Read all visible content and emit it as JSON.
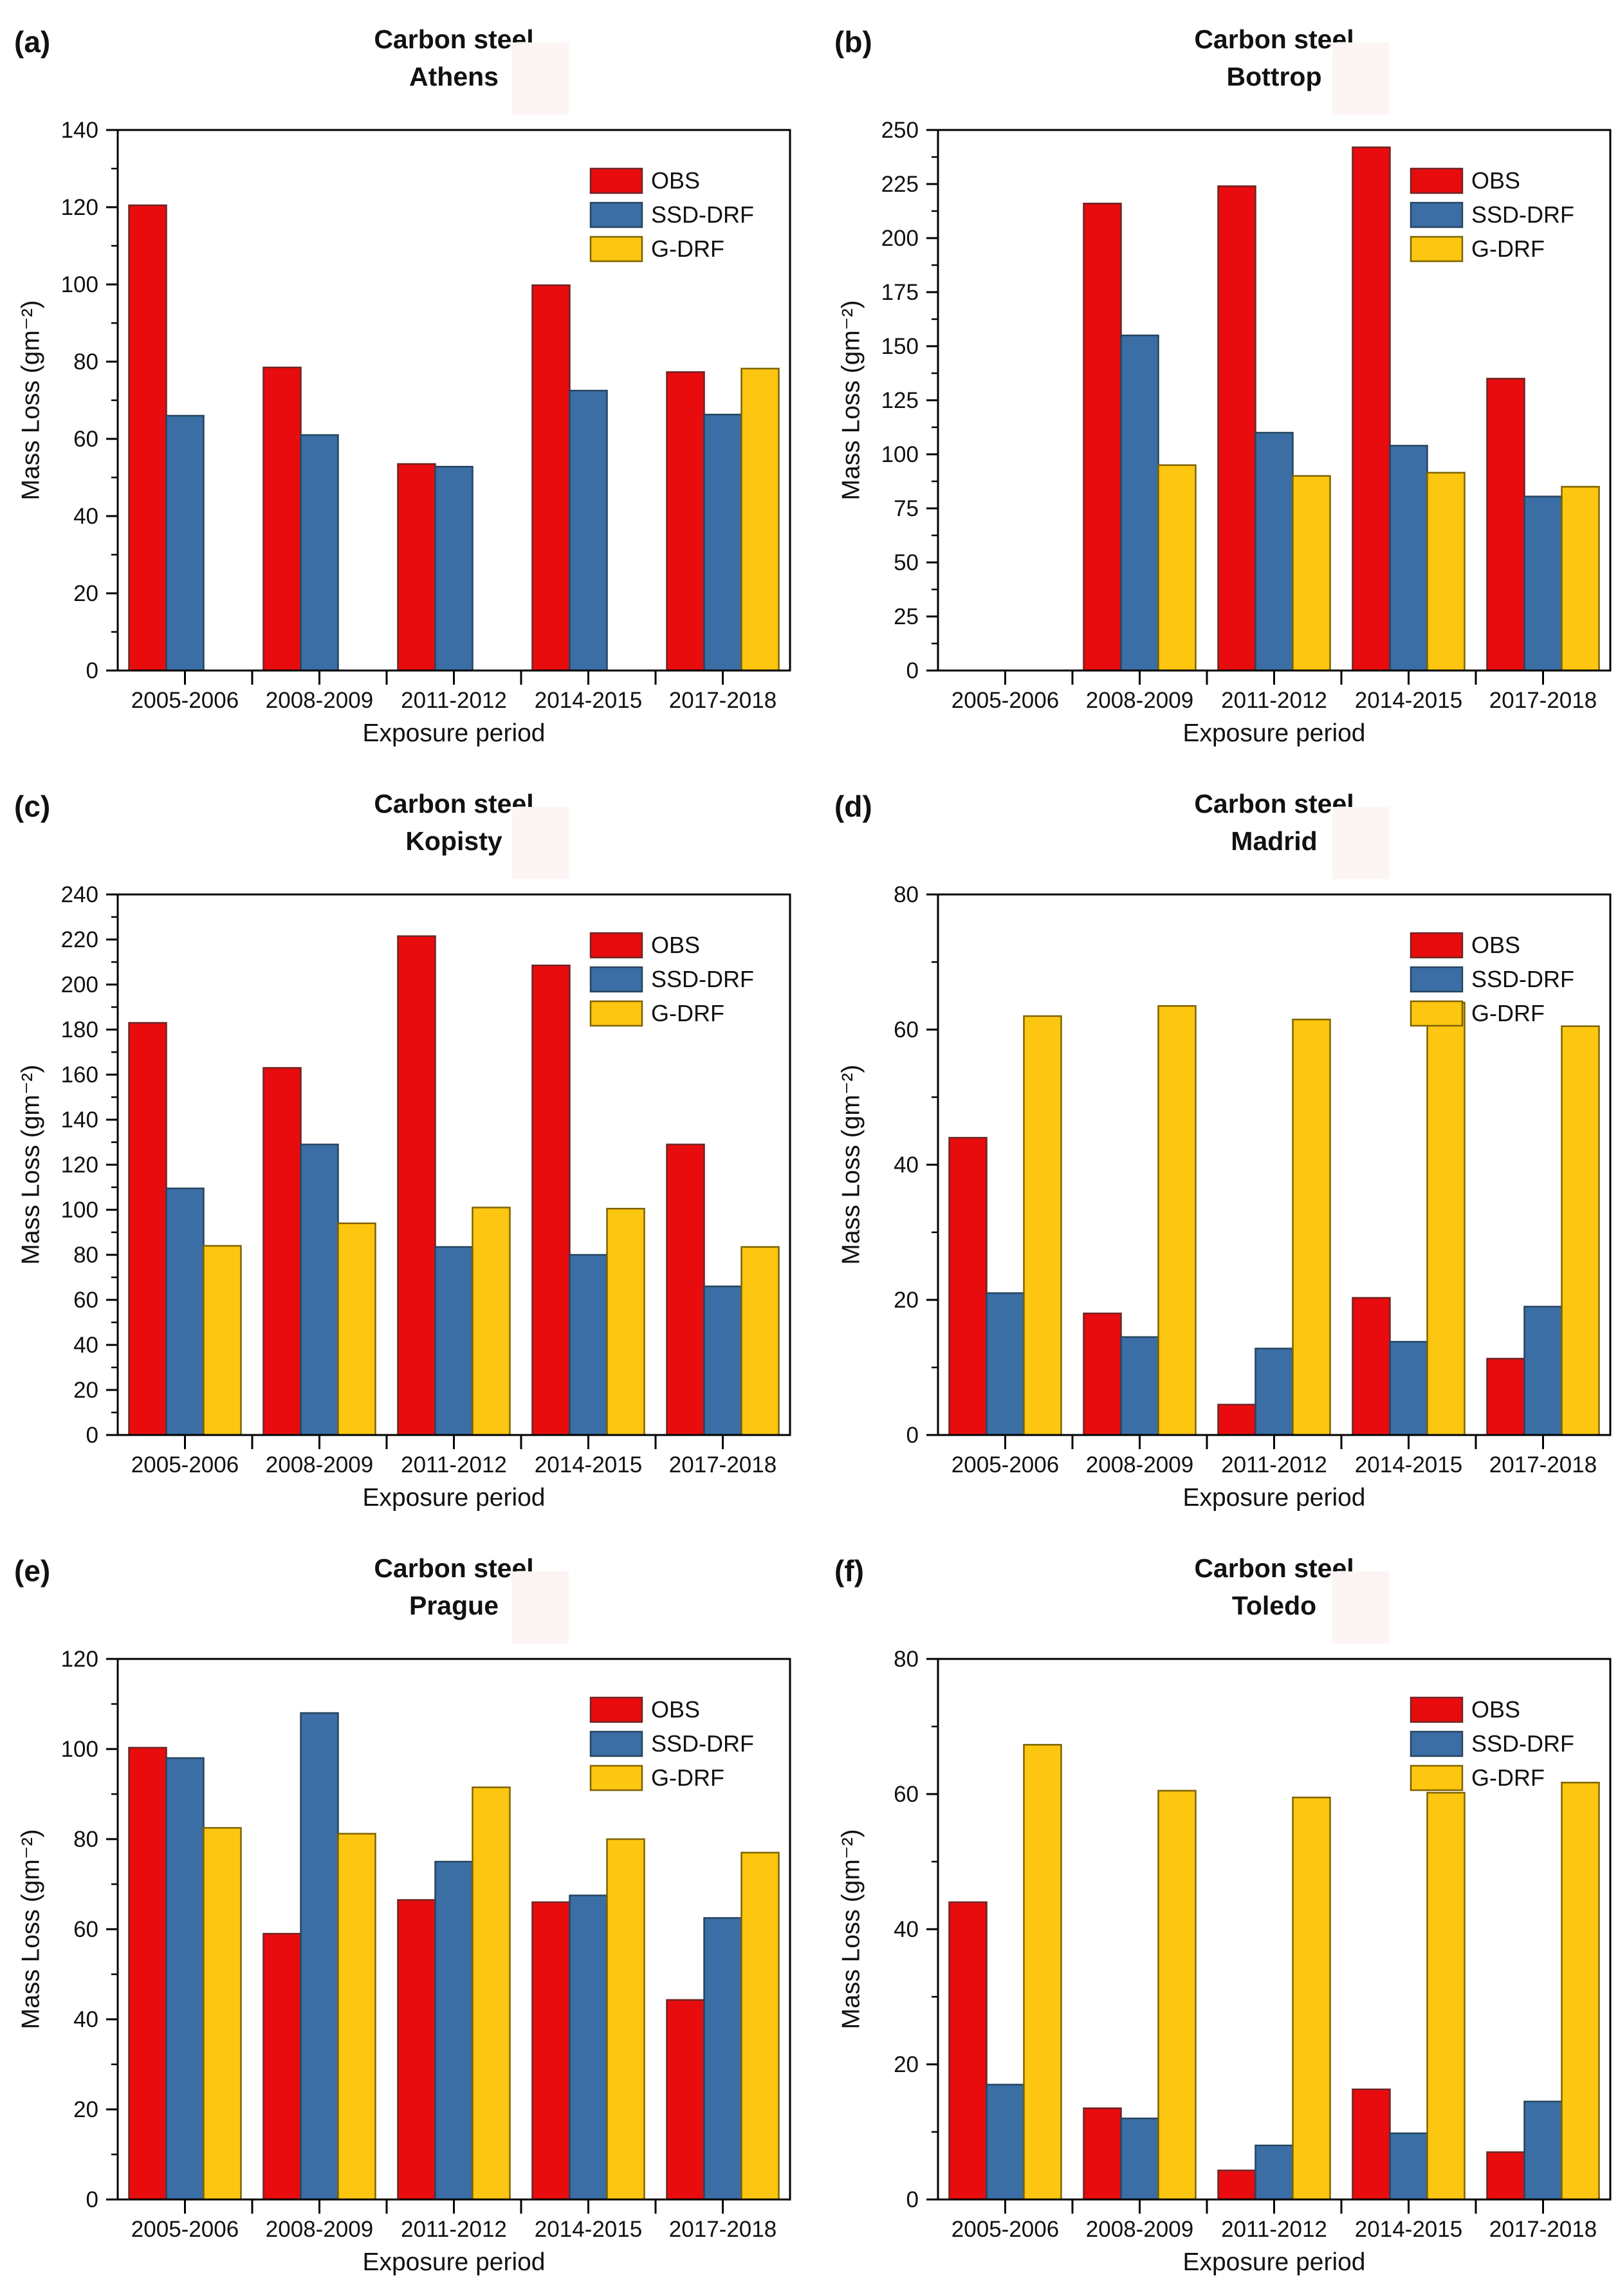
{
  "figure": {
    "background": "#ffffff",
    "axis_color": "#000000",
    "text_color": "#111111",
    "artifact_color": "#fdf4f4",
    "colors": {
      "OBS": {
        "fill": "#e80c0f",
        "stroke": "#6f2424"
      },
      "SSD-DRF": {
        "fill": "#3a6ea4",
        "stroke": "#26445f"
      },
      "G-DRF": {
        "fill": "#fdc610",
        "stroke": "#7d6302"
      }
    }
  },
  "chart_data": [
    {
      "type": "bar",
      "panel_label": "(a)",
      "title": "Carbon steel",
      "subtitle": "Athens",
      "xlabel": "Exposure period",
      "ylabel": "Mass Loss (gm⁻²)",
      "categories": [
        "2005-2006",
        "2008-2009",
        "2011-2012",
        "2014-2015",
        "2017-2018"
      ],
      "ylim": [
        0,
        140
      ],
      "ytick_step": 20,
      "yticks": [
        0,
        20,
        40,
        60,
        80,
        100,
        120,
        140
      ],
      "grid": false,
      "legend": [
        "OBS",
        "SSD-DRF",
        "G-DRF"
      ],
      "legend_position": "top-right",
      "series": [
        {
          "name": "OBS",
          "values": [
            120.5,
            78.5,
            53.5,
            99.8,
            77.3
          ]
        },
        {
          "name": "SSD-DRF",
          "values": [
            66,
            61,
            52.8,
            72.5,
            66.3
          ]
        },
        {
          "name": "G-DRF",
          "values": [
            null,
            null,
            null,
            null,
            78.2
          ]
        }
      ]
    },
    {
      "type": "bar",
      "panel_label": "(b)",
      "title": "Carbon steel",
      "subtitle": "Bottrop",
      "xlabel": "Exposure period",
      "ylabel": "Mass Loss (gm⁻²)",
      "categories": [
        "2005-2006",
        "2008-2009",
        "2011-2012",
        "2014-2015",
        "2017-2018"
      ],
      "ylim": [
        0,
        250
      ],
      "ytick_step": 25,
      "yticks": [
        0,
        25,
        50,
        75,
        100,
        125,
        150,
        175,
        200,
        225,
        250
      ],
      "grid": false,
      "legend": [
        "OBS",
        "SSD-DRF",
        "G-DRF"
      ],
      "legend_position": "top-right",
      "series": [
        {
          "name": "OBS",
          "values": [
            null,
            216,
            224,
            242,
            135
          ]
        },
        {
          "name": "SSD-DRF",
          "values": [
            null,
            155,
            110,
            104,
            80.5
          ]
        },
        {
          "name": "G-DRF",
          "values": [
            null,
            95,
            90,
            91.5,
            85
          ]
        }
      ]
    },
    {
      "type": "bar",
      "panel_label": "(c)",
      "title": "Carbon steel",
      "subtitle": "Kopisty",
      "xlabel": "Exposure period",
      "ylabel": "Mass Loss (gm⁻²)",
      "categories": [
        "2005-2006",
        "2008-2009",
        "2011-2012",
        "2014-2015",
        "2017-2018"
      ],
      "ylim": [
        0,
        240
      ],
      "ytick_step": 20,
      "yticks": [
        0,
        20,
        40,
        60,
        80,
        100,
        120,
        140,
        160,
        180,
        200,
        220,
        240
      ],
      "grid": false,
      "legend": [
        "OBS",
        "SSD-DRF",
        "G-DRF"
      ],
      "legend_position": "top-right",
      "series": [
        {
          "name": "OBS",
          "values": [
            183,
            163,
            221.5,
            208.5,
            129
          ]
        },
        {
          "name": "SSD-DRF",
          "values": [
            109.5,
            129,
            83.5,
            80,
            66
          ]
        },
        {
          "name": "G-DRF",
          "values": [
            84,
            94,
            101,
            100.5,
            83.5
          ]
        }
      ]
    },
    {
      "type": "bar",
      "panel_label": "(d)",
      "title": "Carbon steel",
      "subtitle": "Madrid",
      "xlabel": "Exposure period",
      "ylabel": "Mass Loss (gm⁻²)",
      "categories": [
        "2005-2006",
        "2008-2009",
        "2011-2012",
        "2014-2015",
        "2017-2018"
      ],
      "ylim": [
        0,
        80
      ],
      "ytick_step": 20,
      "yticks": [
        0,
        20,
        40,
        60,
        80
      ],
      "grid": false,
      "legend": [
        "OBS",
        "SSD-DRF",
        "G-DRF"
      ],
      "legend_position": "top-right",
      "series": [
        {
          "name": "OBS",
          "values": [
            44,
            18,
            4.5,
            20.3,
            11.3
          ]
        },
        {
          "name": "SSD-DRF",
          "values": [
            21,
            14.5,
            12.8,
            13.8,
            19
          ]
        },
        {
          "name": "G-DRF",
          "values": [
            62,
            63.5,
            61.5,
            64,
            60.5
          ]
        }
      ]
    },
    {
      "type": "bar",
      "panel_label": "(e)",
      "title": "Carbon steel",
      "subtitle": "Prague",
      "xlabel": "Exposure period",
      "ylabel": "Mass Loss (gm⁻²)",
      "categories": [
        "2005-2006",
        "2008-2009",
        "2011-2012",
        "2014-2015",
        "2017-2018"
      ],
      "ylim": [
        0,
        120
      ],
      "ytick_step": 20,
      "yticks": [
        0,
        20,
        40,
        60,
        80,
        100,
        120
      ],
      "grid": false,
      "legend": [
        "OBS",
        "SSD-DRF",
        "G-DRF"
      ],
      "legend_position": "top-right",
      "series": [
        {
          "name": "OBS",
          "values": [
            100.3,
            59,
            66.5,
            66,
            44.3
          ]
        },
        {
          "name": "SSD-DRF",
          "values": [
            98,
            108,
            75,
            67.5,
            62.5
          ]
        },
        {
          "name": "G-DRF",
          "values": [
            82.5,
            81.2,
            91.5,
            80,
            77
          ]
        }
      ]
    },
    {
      "type": "bar",
      "panel_label": "(f)",
      "title": "Carbon steel",
      "subtitle": "Toledo",
      "xlabel": "Exposure period",
      "ylabel": "Mass Loss (gm⁻²)",
      "categories": [
        "2005-2006",
        "2008-2009",
        "2011-2012",
        "2014-2015",
        "2017-2018"
      ],
      "ylim": [
        0,
        80
      ],
      "ytick_step": 20,
      "yticks": [
        0,
        20,
        40,
        60,
        80
      ],
      "grid": false,
      "legend": [
        "OBS",
        "SSD-DRF",
        "G-DRF"
      ],
      "legend_position": "top-right",
      "series": [
        {
          "name": "OBS",
          "values": [
            44,
            13.5,
            4.3,
            16.3,
            7
          ]
        },
        {
          "name": "SSD-DRF",
          "values": [
            17,
            12,
            8,
            9.8,
            14.5
          ]
        },
        {
          "name": "G-DRF",
          "values": [
            67.3,
            60.5,
            59.5,
            60.2,
            61.7
          ]
        }
      ]
    }
  ]
}
